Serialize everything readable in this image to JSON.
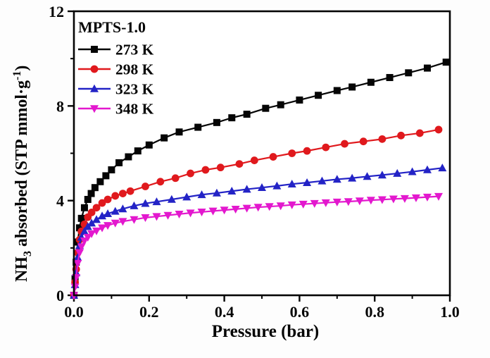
{
  "chart_data": {
    "type": "line",
    "title": "MPTS-1.0",
    "xlabel": "Pressure (bar)",
    "ylabel": "NH3 absorbed (STP mmol·g-1)",
    "ylabel_parts": [
      {
        "text": "NH",
        "kind": "base"
      },
      {
        "text": "3",
        "kind": "sub"
      },
      {
        "text": " absorbed (STP mmol·g",
        "kind": "base"
      },
      {
        "text": "-1",
        "kind": "sup"
      },
      {
        "text": ")",
        "kind": "base"
      }
    ],
    "xlim": [
      0.0,
      1.0
    ],
    "ylim": [
      0,
      12
    ],
    "x_major_ticks": [
      0.0,
      0.2,
      0.4,
      0.6,
      0.8,
      1.0
    ],
    "x_tick_labels": [
      "0.0",
      "0.2",
      "0.4",
      "0.6",
      "0.8",
      "1.0"
    ],
    "x_minor_ticks": [
      0.1,
      0.3,
      0.5,
      0.7,
      0.9
    ],
    "y_major_ticks": [
      0,
      4,
      8,
      12
    ],
    "y_tick_labels": [
      "0",
      "4",
      "8",
      "12"
    ],
    "y_minor_ticks": [
      2,
      6,
      10
    ],
    "grid": false,
    "legend_position": "top-left",
    "legend_title": "MPTS-1.0",
    "axis_color": "#050505",
    "plot_background": "#ffffff",
    "series": [
      {
        "name": "273 K",
        "color": "#050505",
        "marker": "square",
        "points": [
          [
            0,
            0
          ],
          [
            0.003,
            0.7
          ],
          [
            0.006,
            1.4
          ],
          [
            0.01,
            2.25
          ],
          [
            0.015,
            2.85
          ],
          [
            0.02,
            3.25
          ],
          [
            0.028,
            3.7
          ],
          [
            0.037,
            4.05
          ],
          [
            0.046,
            4.3
          ],
          [
            0.056,
            4.55
          ],
          [
            0.07,
            4.8
          ],
          [
            0.085,
            5.05
          ],
          [
            0.1,
            5.3
          ],
          [
            0.12,
            5.6
          ],
          [
            0.145,
            5.85
          ],
          [
            0.17,
            6.1
          ],
          [
            0.2,
            6.35
          ],
          [
            0.24,
            6.65
          ],
          [
            0.28,
            6.9
          ],
          [
            0.33,
            7.1
          ],
          [
            0.38,
            7.3
          ],
          [
            0.42,
            7.5
          ],
          [
            0.46,
            7.65
          ],
          [
            0.51,
            7.9
          ],
          [
            0.55,
            8.05
          ],
          [
            0.6,
            8.25
          ],
          [
            0.65,
            8.45
          ],
          [
            0.7,
            8.65
          ],
          [
            0.74,
            8.8
          ],
          [
            0.79,
            9.0
          ],
          [
            0.84,
            9.2
          ],
          [
            0.89,
            9.4
          ],
          [
            0.94,
            9.6
          ],
          [
            0.99,
            9.85
          ]
        ]
      },
      {
        "name": "298 K",
        "color": "#e0191d",
        "marker": "circle",
        "points": [
          [
            0,
            0
          ],
          [
            0.003,
            0.55
          ],
          [
            0.006,
            1.1
          ],
          [
            0.01,
            1.8
          ],
          [
            0.015,
            2.35
          ],
          [
            0.02,
            2.7
          ],
          [
            0.028,
            3.0
          ],
          [
            0.037,
            3.3
          ],
          [
            0.047,
            3.5
          ],
          [
            0.06,
            3.7
          ],
          [
            0.075,
            3.9
          ],
          [
            0.09,
            4.05
          ],
          [
            0.11,
            4.2
          ],
          [
            0.13,
            4.3
          ],
          [
            0.15,
            4.4
          ],
          [
            0.19,
            4.6
          ],
          [
            0.23,
            4.8
          ],
          [
            0.27,
            4.95
          ],
          [
            0.31,
            5.15
          ],
          [
            0.35,
            5.3
          ],
          [
            0.39,
            5.4
          ],
          [
            0.44,
            5.55
          ],
          [
            0.48,
            5.7
          ],
          [
            0.53,
            5.85
          ],
          [
            0.58,
            6.0
          ],
          [
            0.62,
            6.1
          ],
          [
            0.67,
            6.25
          ],
          [
            0.72,
            6.4
          ],
          [
            0.77,
            6.5
          ],
          [
            0.82,
            6.6
          ],
          [
            0.87,
            6.75
          ],
          [
            0.92,
            6.85
          ],
          [
            0.97,
            7.0
          ]
        ]
      },
      {
        "name": "323 K",
        "color": "#2323c6",
        "marker": "triangle-up",
        "points": [
          [
            0,
            0
          ],
          [
            0.003,
            0.45
          ],
          [
            0.006,
            0.95
          ],
          [
            0.01,
            1.6
          ],
          [
            0.015,
            2.1
          ],
          [
            0.02,
            2.45
          ],
          [
            0.028,
            2.7
          ],
          [
            0.037,
            2.9
          ],
          [
            0.047,
            3.05
          ],
          [
            0.06,
            3.2
          ],
          [
            0.075,
            3.35
          ],
          [
            0.09,
            3.45
          ],
          [
            0.11,
            3.55
          ],
          [
            0.13,
            3.65
          ],
          [
            0.16,
            3.78
          ],
          [
            0.19,
            3.88
          ],
          [
            0.22,
            3.95
          ],
          [
            0.26,
            4.05
          ],
          [
            0.3,
            4.15
          ],
          [
            0.34,
            4.25
          ],
          [
            0.38,
            4.32
          ],
          [
            0.42,
            4.4
          ],
          [
            0.46,
            4.48
          ],
          [
            0.5,
            4.55
          ],
          [
            0.54,
            4.62
          ],
          [
            0.58,
            4.7
          ],
          [
            0.62,
            4.76
          ],
          [
            0.66,
            4.83
          ],
          [
            0.7,
            4.9
          ],
          [
            0.74,
            4.95
          ],
          [
            0.78,
            5.02
          ],
          [
            0.82,
            5.08
          ],
          [
            0.86,
            5.15
          ],
          [
            0.9,
            5.22
          ],
          [
            0.94,
            5.3
          ],
          [
            0.98,
            5.38
          ]
        ]
      },
      {
        "name": "348 K",
        "color": "#e318ce",
        "marker": "triangle-down",
        "points": [
          [
            0,
            0
          ],
          [
            0.003,
            0.35
          ],
          [
            0.006,
            0.75
          ],
          [
            0.01,
            1.35
          ],
          [
            0.015,
            1.8
          ],
          [
            0.02,
            2.05
          ],
          [
            0.028,
            2.3
          ],
          [
            0.037,
            2.45
          ],
          [
            0.047,
            2.6
          ],
          [
            0.06,
            2.72
          ],
          [
            0.075,
            2.85
          ],
          [
            0.09,
            2.95
          ],
          [
            0.11,
            3.05
          ],
          [
            0.13,
            3.12
          ],
          [
            0.16,
            3.2
          ],
          [
            0.19,
            3.28
          ],
          [
            0.22,
            3.33
          ],
          [
            0.25,
            3.38
          ],
          [
            0.28,
            3.43
          ],
          [
            0.31,
            3.48
          ],
          [
            0.34,
            3.52
          ],
          [
            0.37,
            3.56
          ],
          [
            0.4,
            3.6
          ],
          [
            0.43,
            3.64
          ],
          [
            0.46,
            3.68
          ],
          [
            0.49,
            3.72
          ],
          [
            0.52,
            3.75
          ],
          [
            0.55,
            3.78
          ],
          [
            0.58,
            3.82
          ],
          [
            0.61,
            3.85
          ],
          [
            0.64,
            3.88
          ],
          [
            0.67,
            3.91
          ],
          [
            0.7,
            3.94
          ],
          [
            0.73,
            3.96
          ],
          [
            0.76,
            3.99
          ],
          [
            0.79,
            4.02
          ],
          [
            0.82,
            4.04
          ],
          [
            0.85,
            4.07
          ],
          [
            0.88,
            4.09
          ],
          [
            0.91,
            4.12
          ],
          [
            0.94,
            4.15
          ],
          [
            0.97,
            4.18
          ]
        ]
      }
    ]
  }
}
